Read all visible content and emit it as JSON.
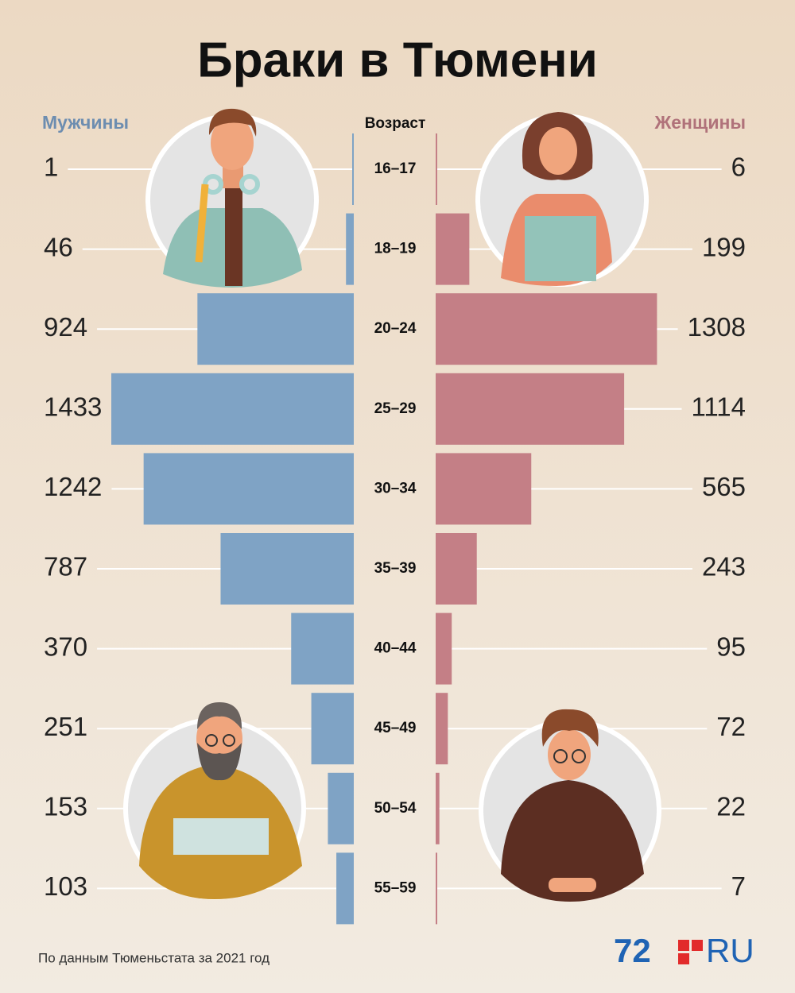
{
  "chart_data": {
    "type": "bar",
    "orientation": "pyramid",
    "title": "Браки в Тюмени",
    "category_label": "Возраст",
    "categories": [
      "16–17",
      "18–19",
      "20–24",
      "25–29",
      "30–34",
      "35–39",
      "40–44",
      "45–49",
      "50–54",
      "55–59"
    ],
    "series": [
      {
        "name": "Мужчины",
        "color": "#7fa3c5",
        "values": [
          1,
          46,
          924,
          1433,
          1242,
          787,
          370,
          251,
          153,
          103
        ]
      },
      {
        "name": "Женщины",
        "color": "#c47f86",
        "values": [
          6,
          199,
          1308,
          1114,
          565,
          243,
          95,
          72,
          22,
          7
        ]
      }
    ],
    "source": "По данным Тюменьстата за 2021 год"
  },
  "logo": {
    "number": "72",
    "suffix": "RU"
  }
}
